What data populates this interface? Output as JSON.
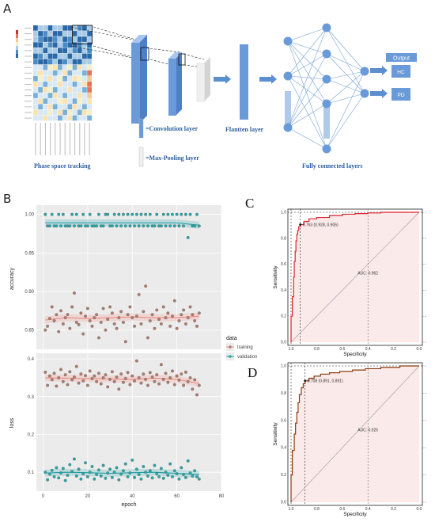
{
  "panels": {
    "a": "A",
    "b": "B",
    "c": "C",
    "d": "D"
  },
  "architecture": {
    "phase_space_label": "Phase space tracking",
    "conv_label": "=Convolution layer",
    "pool_label": "=Max-Pooling layer",
    "flatten_label": "Flantten layer",
    "fc_label": "Fully connected layers",
    "output_label": "Output",
    "class_1": "HC",
    "class_2": "PD"
  },
  "colors": {
    "training": "#b07c6e",
    "validation": "#2aa6a8",
    "training_smooth": "#f08a7e",
    "validation_smooth": "#1f9ea5",
    "plot_bg": "#ebebeb",
    "cnn_blue": "#6a9bd8",
    "roc_c": "#e0202a",
    "roc_d": "#8b3a0e"
  },
  "chart_data": [
    {
      "type": "scatter",
      "name": "accuracy",
      "xlabel": "",
      "ylabel": "accuracy",
      "xlim": [
        -3,
        80
      ],
      "ylim": [
        0.825,
        1.012
      ],
      "yticks": [
        0.85,
        0.9,
        0.95,
        1.0
      ],
      "ytick_labels": [
        "0.85",
        "0.90",
        "0.95",
        "1.00"
      ],
      "series": [
        {
          "name": "training",
          "x": [
            1,
            2,
            3,
            4,
            5,
            6,
            7,
            8,
            9,
            10,
            11,
            12,
            13,
            14,
            15,
            16,
            17,
            18,
            19,
            20,
            21,
            22,
            23,
            24,
            25,
            26,
            27,
            28,
            29,
            30,
            31,
            32,
            33,
            34,
            35,
            36,
            37,
            38,
            39,
            40,
            41,
            42,
            43,
            44,
            45,
            46,
            47,
            48,
            49,
            50,
            51,
            52,
            53,
            54,
            55,
            56,
            57,
            58,
            59,
            60,
            61,
            62,
            63,
            64,
            65,
            66,
            67,
            68,
            69,
            70
          ],
          "values": [
            0.85,
            0.855,
            0.865,
            0.88,
            0.862,
            0.87,
            0.848,
            0.875,
            0.858,
            0.866,
            0.87,
            0.852,
            0.88,
            0.898,
            0.86,
            0.857,
            0.872,
            0.845,
            0.868,
            0.878,
            0.862,
            0.855,
            0.866,
            0.87,
            0.84,
            0.86,
            0.878,
            0.85,
            0.864,
            0.88,
            0.872,
            0.858,
            0.852,
            0.866,
            0.874,
            0.86,
            0.835,
            0.87,
            0.88,
            0.866,
            0.855,
            0.868,
            0.896,
            0.858,
            0.874,
            0.907,
            0.84,
            0.862,
            0.87,
            0.852,
            0.876,
            0.864,
            0.858,
            0.88,
            0.866,
            0.872,
            0.855,
            0.868,
            0.888,
            0.852,
            0.862,
            0.87,
            0.876,
            0.858,
            0.866,
            0.88,
            0.87,
            0.862,
            0.855,
            0.872
          ]
        },
        {
          "name": "validation",
          "x": [
            1,
            2,
            3,
            4,
            5,
            6,
            7,
            8,
            9,
            10,
            11,
            12,
            13,
            14,
            15,
            16,
            17,
            18,
            19,
            20,
            21,
            22,
            23,
            24,
            25,
            26,
            27,
            28,
            29,
            30,
            31,
            32,
            33,
            34,
            35,
            36,
            37,
            38,
            39,
            40,
            41,
            42,
            43,
            44,
            45,
            46,
            47,
            48,
            49,
            50,
            51,
            52,
            53,
            54,
            55,
            56,
            57,
            58,
            59,
            60,
            61,
            62,
            63,
            64,
            65,
            66,
            67,
            68,
            69,
            70
          ],
          "values": [
            1.0,
            0.985,
            0.985,
            1.0,
            0.985,
            0.985,
            1.0,
            0.985,
            1.0,
            0.985,
            0.985,
            0.985,
            1.0,
            0.985,
            1.0,
            0.985,
            0.985,
            1.0,
            0.985,
            0.985,
            1.0,
            0.985,
            0.985,
            0.985,
            1.0,
            0.985,
            0.985,
            1.0,
            1.0,
            0.985,
            0.985,
            1.0,
            0.985,
            1.0,
            0.985,
            1.0,
            0.985,
            1.0,
            0.985,
            1.0,
            0.985,
            1.0,
            0.985,
            1.0,
            0.985,
            1.0,
            0.985,
            1.0,
            0.985,
            0.985,
            1.0,
            0.985,
            0.985,
            1.0,
            0.985,
            1.0,
            0.985,
            1.0,
            0.985,
            1.0,
            0.985,
            1.0,
            0.985,
            1.0,
            0.97,
            1.0,
            0.985,
            0.985,
            1.0,
            0.985
          ]
        }
      ],
      "smooth": [
        {
          "name": "training",
          "x": [
            1,
            10,
            20,
            30,
            40,
            50,
            60,
            70
          ],
          "values": [
            0.863,
            0.866,
            0.865,
            0.866,
            0.867,
            0.866,
            0.866,
            0.868
          ]
        },
        {
          "name": "validation",
          "x": [
            1,
            10,
            20,
            30,
            40,
            50,
            60,
            70
          ],
          "values": [
            0.989,
            0.989,
            0.989,
            0.989,
            0.989,
            0.989,
            0.989,
            0.986
          ]
        }
      ]
    },
    {
      "type": "scatter",
      "name": "loss",
      "xlabel": "epoch",
      "ylabel": "loss",
      "xlim": [
        -3,
        80
      ],
      "ylim": [
        0.05,
        0.415
      ],
      "xticks": [
        0,
        20,
        40,
        60,
        80
      ],
      "yticks": [
        0.1,
        0.2,
        0.3,
        0.4
      ],
      "ytick_labels": [
        "0.1",
        "0.2",
        "0.3",
        "0.4"
      ],
      "series": [
        {
          "name": "training",
          "x": [
            1,
            2,
            3,
            4,
            5,
            6,
            7,
            8,
            9,
            10,
            11,
            12,
            13,
            14,
            15,
            16,
            17,
            18,
            19,
            20,
            21,
            22,
            23,
            24,
            25,
            26,
            27,
            28,
            29,
            30,
            31,
            32,
            33,
            34,
            35,
            36,
            37,
            38,
            39,
            40,
            41,
            42,
            43,
            44,
            45,
            46,
            47,
            48,
            49,
            50,
            51,
            52,
            53,
            54,
            55,
            56,
            57,
            58,
            59,
            60,
            61,
            62,
            63,
            64,
            65,
            66,
            67,
            68,
            69,
            70
          ],
          "values": [
            0.365,
            0.33,
            0.355,
            0.345,
            0.362,
            0.328,
            0.35,
            0.372,
            0.34,
            0.358,
            0.332,
            0.366,
            0.345,
            0.352,
            0.38,
            0.336,
            0.36,
            0.342,
            0.356,
            0.33,
            0.368,
            0.348,
            0.355,
            0.34,
            0.362,
            0.334,
            0.35,
            0.358,
            0.326,
            0.346,
            0.366,
            0.34,
            0.352,
            0.32,
            0.36,
            0.338,
            0.348,
            0.364,
            0.332,
            0.355,
            0.342,
            0.395,
            0.35,
            0.336,
            0.36,
            0.346,
            0.33,
            0.364,
            0.352,
            0.34,
            0.358,
            0.334,
            0.385,
            0.346,
            0.362,
            0.338,
            0.35,
            0.368,
            0.332,
            0.355,
            0.344,
            0.36,
            0.33,
            0.365,
            0.34,
            0.35,
            0.32,
            0.345,
            0.305,
            0.33
          ]
        },
        {
          "name": "validation",
          "x": [
            1,
            2,
            3,
            4,
            5,
            6,
            7,
            8,
            9,
            10,
            11,
            12,
            13,
            14,
            15,
            16,
            17,
            18,
            19,
            20,
            21,
            22,
            23,
            24,
            25,
            26,
            27,
            28,
            29,
            30,
            31,
            32,
            33,
            34,
            35,
            36,
            37,
            38,
            39,
            40,
            41,
            42,
            43,
            44,
            45,
            46,
            47,
            48,
            49,
            50,
            51,
            52,
            53,
            54,
            55,
            56,
            57,
            58,
            59,
            60,
            61,
            62,
            63,
            64,
            65,
            66,
            67,
            68,
            69,
            70
          ],
          "values": [
            0.1,
            0.08,
            0.095,
            0.105,
            0.088,
            0.112,
            0.085,
            0.098,
            0.11,
            0.078,
            0.092,
            0.12,
            0.102,
            0.135,
            0.09,
            0.108,
            0.082,
            0.096,
            0.125,
            0.088,
            0.1,
            0.115,
            0.082,
            0.094,
            0.106,
            0.09,
            0.118,
            0.084,
            0.098,
            0.108,
            0.086,
            0.1,
            0.112,
            0.08,
            0.095,
            0.104,
            0.122,
            0.088,
            0.098,
            0.132,
            0.086,
            0.108,
            0.094,
            0.082,
            0.115,
            0.1,
            0.09,
            0.104,
            0.085,
            0.118,
            0.096,
            0.088,
            0.11,
            0.084,
            0.1,
            0.092,
            0.122,
            0.088,
            0.104,
            0.096,
            0.082,
            0.112,
            0.094,
            0.086,
            0.13,
            0.098,
            0.09,
            0.104,
            0.088,
            0.082
          ]
        }
      ],
      "smooth": [
        {
          "name": "training",
          "x": [
            1,
            10,
            20,
            30,
            40,
            50,
            60,
            70
          ],
          "values": [
            0.35,
            0.349,
            0.348,
            0.347,
            0.346,
            0.349,
            0.346,
            0.335
          ]
        },
        {
          "name": "validation",
          "x": [
            1,
            10,
            20,
            30,
            40,
            50,
            60,
            70
          ],
          "values": [
            0.098,
            0.1,
            0.099,
            0.097,
            0.099,
            0.1,
            0.097,
            0.094
          ]
        }
      ]
    },
    {
      "type": "line",
      "name": "roc-c",
      "xlabel": "Specificity",
      "ylabel": "Sensitivity",
      "x_reversed": true,
      "xlim": [
        1.0,
        0.0
      ],
      "ylim": [
        0.0,
        1.0
      ],
      "ticks": [
        0.0,
        0.2,
        0.4,
        0.6,
        0.8,
        1.0
      ],
      "tick_labels": [
        "0.0",
        "0.2",
        "0.4",
        "0.6",
        "0.8",
        "1.0"
      ],
      "x_tick_labels": [
        "1.0",
        "0.8",
        "0.6",
        "0.4",
        "0.2",
        "0.0"
      ],
      "threshold_label": "0.763 (0.928, 0.905)",
      "threshold_point": {
        "specificity": 0.928,
        "sensitivity": 0.905
      },
      "auc_label": "AUC: 0.962",
      "specificity": [
        1.0,
        1.0,
        0.99,
        0.99,
        0.98,
        0.98,
        0.975,
        0.975,
        0.968,
        0.968,
        0.962,
        0.962,
        0.955,
        0.955,
        0.948,
        0.948,
        0.94,
        0.94,
        0.928,
        0.928,
        0.9,
        0.9,
        0.86,
        0.86,
        0.8,
        0.8,
        0.7,
        0.7,
        0.6,
        0.6,
        0.5,
        0.5,
        0.4,
        0.4,
        0.3,
        0.3,
        0.0
      ],
      "sensitivity": [
        0.0,
        0.2,
        0.2,
        0.35,
        0.35,
        0.5,
        0.5,
        0.62,
        0.62,
        0.7,
        0.7,
        0.78,
        0.78,
        0.83,
        0.83,
        0.86,
        0.86,
        0.89,
        0.89,
        0.905,
        0.905,
        0.93,
        0.93,
        0.95,
        0.95,
        0.96,
        0.96,
        0.975,
        0.975,
        0.985,
        0.985,
        0.99,
        0.99,
        0.995,
        0.995,
        1.0,
        1.0
      ]
    },
    {
      "type": "line",
      "name": "roc-d",
      "xlabel": "Specificity",
      "ylabel": "Sensitivity",
      "x_reversed": true,
      "xlim": [
        1.0,
        0.0
      ],
      "ylim": [
        0.0,
        1.0
      ],
      "ticks": [
        0.0,
        0.2,
        0.4,
        0.6,
        0.8,
        1.0
      ],
      "tick_labels": [
        "0.0",
        "0.2",
        "0.4",
        "0.6",
        "0.8",
        "1.0"
      ],
      "x_tick_labels": [
        "1.0",
        "0.8",
        "0.6",
        "0.4",
        "0.2",
        "0.0"
      ],
      "threshold_label": "0.708 (0.891, 0.891)",
      "threshold_point": {
        "specificity": 0.891,
        "sensitivity": 0.891
      },
      "auc_label": "AUC: 0.926",
      "specificity": [
        1.0,
        1.0,
        0.99,
        0.99,
        0.975,
        0.975,
        0.965,
        0.965,
        0.955,
        0.955,
        0.945,
        0.945,
        0.935,
        0.935,
        0.92,
        0.92,
        0.905,
        0.905,
        0.891,
        0.891,
        0.86,
        0.86,
        0.82,
        0.82,
        0.77,
        0.77,
        0.7,
        0.7,
        0.62,
        0.62,
        0.52,
        0.52,
        0.42,
        0.42,
        0.3,
        0.3,
        0.15,
        0.15,
        0.0
      ],
      "sensitivity": [
        0.0,
        0.2,
        0.2,
        0.38,
        0.38,
        0.5,
        0.5,
        0.58,
        0.58,
        0.66,
        0.66,
        0.73,
        0.73,
        0.79,
        0.79,
        0.84,
        0.84,
        0.87,
        0.87,
        0.891,
        0.891,
        0.91,
        0.91,
        0.925,
        0.925,
        0.94,
        0.94,
        0.95,
        0.95,
        0.96,
        0.96,
        0.97,
        0.97,
        0.98,
        0.98,
        0.99,
        0.99,
        1.0,
        1.0
      ]
    }
  ],
  "legend": {
    "title": "data",
    "items": [
      "training",
      "validation"
    ]
  }
}
